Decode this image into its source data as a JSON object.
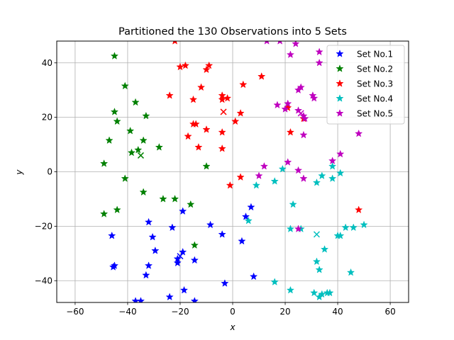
{
  "chart_data": {
    "type": "scatter",
    "title": "Partitioned the 130 Observations into 5 Sets",
    "xlabel": "x",
    "ylabel": "y",
    "xlim": [
      -67,
      67
    ],
    "ylim": [
      -48,
      48
    ],
    "xticks": [
      -60,
      -40,
      -20,
      0,
      20,
      40,
      60
    ],
    "yticks": [
      -40,
      -20,
      0,
      20,
      40
    ],
    "grid": true,
    "legend_position": "top-right",
    "series": [
      {
        "name": "Set No.1",
        "color": "#0000ff",
        "points": [
          [
            -46,
            -23.5
          ],
          [
            -45.5,
            -35
          ],
          [
            -45,
            -34.5
          ],
          [
            -37,
            -47.5
          ],
          [
            -35,
            -47.5
          ],
          [
            -33,
            -38
          ],
          [
            -32,
            -34.5
          ],
          [
            -32,
            -18.5
          ],
          [
            -30.5,
            -24
          ],
          [
            -29.5,
            -29
          ],
          [
            -24,
            -46
          ],
          [
            -23,
            -20.5
          ],
          [
            -21,
            -33.5
          ],
          [
            -21,
            -32
          ],
          [
            -19,
            -29.5
          ],
          [
            -19,
            -14.5
          ],
          [
            -18.5,
            -43.5
          ],
          [
            -14.5,
            -32.5
          ],
          [
            -14.5,
            -47.5
          ],
          [
            -8.5,
            -19.5
          ],
          [
            -4,
            -23
          ],
          [
            -3,
            -41
          ],
          [
            3.5,
            -25.5
          ],
          [
            5,
            -16.5
          ],
          [
            7,
            -13
          ],
          [
            8,
            -38.5
          ]
        ],
        "centroid": [
          -20,
          -31
        ]
      },
      {
        "name": "Set No.2",
        "color": "#008000",
        "points": [
          [
            -45,
            42.5
          ],
          [
            -41,
            31.5
          ],
          [
            -37,
            25.5
          ],
          [
            -33,
            20.5
          ],
          [
            -44,
            18.5
          ],
          [
            -45,
            22
          ],
          [
            -39,
            15
          ],
          [
            -34,
            11.5
          ],
          [
            -36,
            8
          ],
          [
            -38.5,
            7
          ],
          [
            -47,
            11.5
          ],
          [
            -28,
            9
          ],
          [
            -49,
            3
          ],
          [
            -10,
            2
          ],
          [
            -41,
            -2.5
          ],
          [
            -34,
            -7.5
          ],
          [
            -26.5,
            -10
          ],
          [
            -22,
            -10
          ],
          [
            -16,
            -12
          ],
          [
            -44,
            -14
          ],
          [
            -49,
            -15.5
          ],
          [
            -14.5,
            -27
          ]
        ],
        "centroid": [
          -35,
          6
        ]
      },
      {
        "name": "Set No.3",
        "color": "#ff0000",
        "points": [
          [
            -22,
            48
          ],
          [
            -20,
            38.5
          ],
          [
            -18,
            39
          ],
          [
            -10,
            37.5
          ],
          [
            -9,
            39
          ],
          [
            -15,
            26.5
          ],
          [
            -24,
            28
          ],
          [
            -12,
            31
          ],
          [
            -4,
            26.5
          ],
          [
            -2,
            27
          ],
          [
            -4,
            28
          ],
          [
            4,
            32
          ],
          [
            11,
            35
          ],
          [
            3,
            21.5
          ],
          [
            1,
            18.5
          ],
          [
            -4,
            14.5
          ],
          [
            -10,
            15.5
          ],
          [
            -15,
            17.5
          ],
          [
            -14,
            17.5
          ],
          [
            -17,
            13
          ],
          [
            -13,
            9
          ],
          [
            -4,
            8.5
          ],
          [
            21,
            23.5
          ],
          [
            27,
            19.5
          ],
          [
            22,
            14.5
          ],
          [
            3,
            -2
          ],
          [
            -1,
            -5
          ],
          [
            48,
            -14
          ]
        ],
        "centroid": [
          -3.5,
          22
        ]
      },
      {
        "name": "Set No.4",
        "color": "#00bfbf",
        "points": [
          [
            9,
            -5
          ],
          [
            16,
            -3.5
          ],
          [
            19,
            1
          ],
          [
            34,
            -1.5
          ],
          [
            41,
            -0.5
          ],
          [
            38,
            2
          ],
          [
            38,
            -2.5
          ],
          [
            32,
            -4
          ],
          [
            23,
            -12
          ],
          [
            22,
            -21
          ],
          [
            26,
            -21
          ],
          [
            6,
            -18
          ],
          [
            40,
            -23.5
          ],
          [
            41,
            -23.5
          ],
          [
            43,
            -20.5
          ],
          [
            46,
            -20.5
          ],
          [
            50,
            -19.5
          ],
          [
            35,
            -28.5
          ],
          [
            32,
            -33
          ],
          [
            33,
            -36
          ],
          [
            45,
            -37
          ],
          [
            16,
            -40.5
          ],
          [
            22,
            -43.5
          ],
          [
            31,
            -44.5
          ],
          [
            33,
            -46
          ],
          [
            34,
            -45
          ],
          [
            36,
            -44.5
          ],
          [
            37,
            -44.5
          ]
        ],
        "centroid": [
          32,
          -23
        ]
      },
      {
        "name": "Set No.5",
        "color": "#bf00bf",
        "points": [
          [
            13,
            48
          ],
          [
            18,
            48
          ],
          [
            24,
            47
          ],
          [
            22,
            43
          ],
          [
            33,
            44
          ],
          [
            33,
            40
          ],
          [
            26,
            31
          ],
          [
            25,
            30
          ],
          [
            30.5,
            28
          ],
          [
            17,
            24.5
          ],
          [
            20,
            23
          ],
          [
            21,
            25
          ],
          [
            25,
            22.5
          ],
          [
            27,
            20.5
          ],
          [
            27.5,
            19.5
          ],
          [
            27,
            13.5
          ],
          [
            21,
            3.5
          ],
          [
            12,
            2
          ],
          [
            10,
            -1.5
          ],
          [
            25,
            0.5
          ],
          [
            27,
            -2.5
          ],
          [
            38,
            4
          ],
          [
            41,
            6.5
          ],
          [
            48,
            14
          ],
          [
            31,
            27
          ],
          [
            25,
            -21
          ]
        ],
        "centroid": [
          26,
          21.5
        ]
      }
    ]
  }
}
